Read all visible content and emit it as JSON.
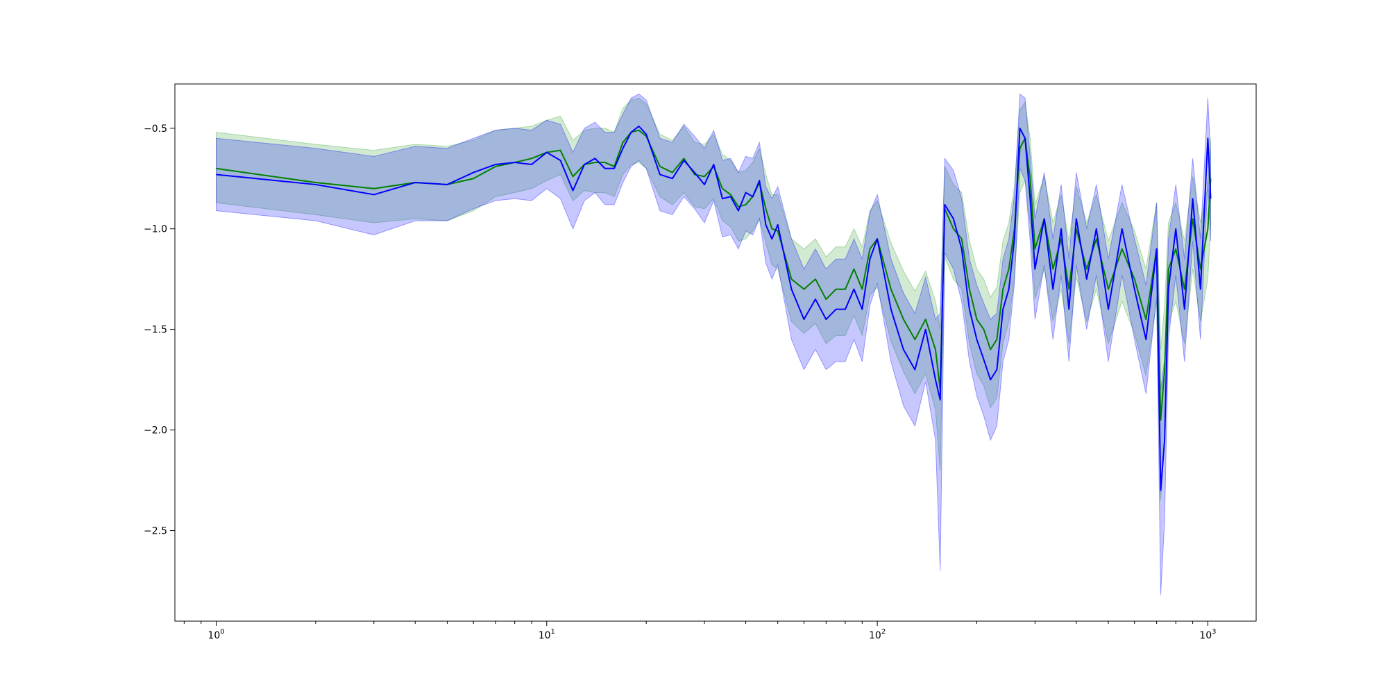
{
  "chart_data": {
    "type": "line",
    "title": "",
    "xlabel": "",
    "ylabel": "",
    "x_scale": "log",
    "xlim": [
      0.75,
      1400
    ],
    "ylim": [
      -2.95,
      -0.28
    ],
    "grid": false,
    "legend": "none",
    "x_ticks": [
      {
        "value": 1,
        "base": "10",
        "exp": "0"
      },
      {
        "value": 10,
        "base": "10",
        "exp": "1"
      },
      {
        "value": 100,
        "base": "10",
        "exp": "2"
      },
      {
        "value": 1000,
        "base": "10",
        "exp": "3"
      }
    ],
    "y_ticks": [
      {
        "value": -0.5,
        "label": "−0.5"
      },
      {
        "value": -1.0,
        "label": "−1.0"
      },
      {
        "value": -1.5,
        "label": "−1.5"
      },
      {
        "value": -2.0,
        "label": "−2.0"
      },
      {
        "value": -2.5,
        "label": "−2.5"
      }
    ],
    "series": [
      {
        "color": "#008000",
        "band_color": "#2ca02c",
        "x": [
          1,
          2,
          3,
          4,
          5,
          6,
          7,
          8,
          9,
          10,
          11,
          12,
          13,
          14,
          15,
          16,
          17,
          18,
          19,
          20,
          22,
          24,
          26,
          28,
          30,
          32,
          34,
          36,
          38,
          40,
          42,
          44,
          46,
          48,
          50,
          55,
          60,
          65,
          70,
          75,
          80,
          85,
          90,
          95,
          100,
          110,
          120,
          130,
          140,
          150,
          155,
          160,
          170,
          180,
          190,
          200,
          210,
          220,
          230,
          240,
          250,
          260,
          270,
          280,
          290,
          300,
          320,
          340,
          360,
          380,
          400,
          430,
          460,
          500,
          550,
          600,
          650,
          700,
          720,
          740,
          760,
          800,
          850,
          900,
          950,
          1000,
          1020
        ],
        "y": [
          -0.7,
          -0.77,
          -0.8,
          -0.77,
          -0.78,
          -0.75,
          -0.69,
          -0.67,
          -0.65,
          -0.62,
          -0.61,
          -0.74,
          -0.68,
          -0.67,
          -0.67,
          -0.69,
          -0.57,
          -0.52,
          -0.51,
          -0.54,
          -0.69,
          -0.72,
          -0.65,
          -0.73,
          -0.74,
          -0.69,
          -0.8,
          -0.83,
          -0.89,
          -0.88,
          -0.84,
          -0.77,
          -0.9,
          -1.0,
          -1.01,
          -1.25,
          -1.3,
          -1.25,
          -1.35,
          -1.3,
          -1.3,
          -1.2,
          -1.3,
          -1.1,
          -1.05,
          -1.3,
          -1.45,
          -1.55,
          -1.45,
          -1.6,
          -1.8,
          -0.9,
          -1.0,
          -1.05,
          -1.3,
          -1.45,
          -1.5,
          -1.6,
          -1.55,
          -1.3,
          -1.2,
          -1.0,
          -0.6,
          -0.55,
          -0.75,
          -1.1,
          -0.95,
          -1.2,
          -1.05,
          -1.3,
          -1.0,
          -1.2,
          -1.05,
          -1.3,
          -1.1,
          -1.25,
          -1.45,
          -1.1,
          -1.95,
          -1.7,
          -1.2,
          -1.1,
          -1.3,
          -0.95,
          -1.2,
          -1.0,
          -0.75
        ],
        "lower": [
          -0.87,
          -0.93,
          -0.97,
          -0.95,
          -0.96,
          -0.91,
          -0.84,
          -0.82,
          -0.8,
          -0.76,
          -0.73,
          -0.86,
          -0.81,
          -0.82,
          -0.82,
          -0.84,
          -0.73,
          -0.68,
          -0.67,
          -0.7,
          -0.84,
          -0.88,
          -0.82,
          -0.89,
          -0.9,
          -0.85,
          -0.96,
          -0.99,
          -1.06,
          -1.05,
          -1.01,
          -0.95,
          -1.07,
          -1.18,
          -1.2,
          -1.46,
          -1.52,
          -1.47,
          -1.57,
          -1.53,
          -1.53,
          -1.43,
          -1.53,
          -1.33,
          -1.29,
          -1.56,
          -1.71,
          -1.82,
          -1.72,
          -1.9,
          -2.2,
          -1.14,
          -1.25,
          -1.3,
          -1.57,
          -1.72,
          -1.78,
          -1.89,
          -1.84,
          -1.57,
          -1.46,
          -1.24,
          -0.82,
          -0.76,
          -0.98,
          -1.35,
          -1.2,
          -1.46,
          -1.3,
          -1.57,
          -1.24,
          -1.46,
          -1.3,
          -1.57,
          -1.36,
          -1.52,
          -1.73,
          -1.36,
          -2.35,
          -2.05,
          -1.47,
          -1.36,
          -1.57,
          -1.2,
          -1.46,
          -1.25,
          -0.98
        ],
        "upper": [
          -0.52,
          -0.58,
          -0.61,
          -0.58,
          -0.59,
          -0.56,
          -0.51,
          -0.5,
          -0.49,
          -0.46,
          -0.44,
          -0.56,
          -0.51,
          -0.5,
          -0.5,
          -0.52,
          -0.4,
          -0.36,
          -0.35,
          -0.38,
          -0.53,
          -0.56,
          -0.49,
          -0.57,
          -0.58,
          -0.53,
          -0.63,
          -0.66,
          -0.72,
          -0.71,
          -0.67,
          -0.6,
          -0.73,
          -0.83,
          -0.83,
          -1.05,
          -1.1,
          -1.05,
          -1.14,
          -1.09,
          -1.09,
          -1.0,
          -1.09,
          -0.91,
          -0.86,
          -1.07,
          -1.21,
          -1.31,
          -1.21,
          -1.36,
          -1.5,
          -0.69,
          -0.78,
          -0.82,
          -1.06,
          -1.2,
          -1.25,
          -1.34,
          -1.29,
          -1.06,
          -0.97,
          -0.79,
          -0.41,
          -0.37,
          -0.55,
          -0.88,
          -0.74,
          -0.97,
          -0.83,
          -1.06,
          -0.79,
          -0.97,
          -0.83,
          -1.06,
          -0.87,
          -1.01,
          -1.2,
          -0.87,
          -1.6,
          -1.38,
          -0.97,
          -0.87,
          -1.06,
          -0.74,
          -0.97,
          -0.79,
          -0.55
        ]
      },
      {
        "color": "#0000ff",
        "band_color": "#0000ff",
        "x": [
          1,
          2,
          3,
          4,
          5,
          6,
          7,
          8,
          9,
          10,
          11,
          12,
          13,
          14,
          15,
          16,
          17,
          18,
          19,
          20,
          22,
          24,
          26,
          28,
          30,
          32,
          34,
          36,
          38,
          40,
          42,
          44,
          46,
          48,
          50,
          55,
          60,
          65,
          70,
          75,
          80,
          85,
          90,
          95,
          100,
          110,
          120,
          130,
          140,
          150,
          155,
          160,
          170,
          180,
          190,
          200,
          210,
          220,
          230,
          240,
          250,
          260,
          270,
          280,
          290,
          300,
          320,
          340,
          360,
          380,
          400,
          430,
          460,
          500,
          550,
          600,
          650,
          700,
          720,
          740,
          760,
          800,
          850,
          900,
          950,
          1000,
          1020
        ],
        "y": [
          -0.73,
          -0.78,
          -0.83,
          -0.77,
          -0.78,
          -0.72,
          -0.68,
          -0.67,
          -0.68,
          -0.62,
          -0.66,
          -0.81,
          -0.68,
          -0.65,
          -0.7,
          -0.7,
          -0.6,
          -0.52,
          -0.49,
          -0.53,
          -0.73,
          -0.75,
          -0.66,
          -0.72,
          -0.78,
          -0.68,
          -0.85,
          -0.84,
          -0.91,
          -0.82,
          -0.84,
          -0.76,
          -0.98,
          -1.05,
          -0.98,
          -1.3,
          -1.45,
          -1.35,
          -1.45,
          -1.4,
          -1.4,
          -1.3,
          -1.4,
          -1.15,
          -1.05,
          -1.4,
          -1.6,
          -1.7,
          -1.5,
          -1.75,
          -1.85,
          -0.88,
          -0.95,
          -1.1,
          -1.4,
          -1.55,
          -1.65,
          -1.75,
          -1.7,
          -1.4,
          -1.3,
          -1.05,
          -0.5,
          -0.55,
          -0.85,
          -1.2,
          -0.95,
          -1.3,
          -1.0,
          -1.4,
          -0.95,
          -1.25,
          -1.0,
          -1.4,
          -1.0,
          -1.3,
          -1.55,
          -1.1,
          -2.3,
          -2.05,
          -1.3,
          -1.0,
          -1.4,
          -0.85,
          -1.3,
          -0.55,
          -0.85
        ],
        "lower": [
          -0.91,
          -0.96,
          -1.03,
          -0.96,
          -0.96,
          -0.9,
          -0.86,
          -0.85,
          -0.86,
          -0.8,
          -0.85,
          -1.0,
          -0.86,
          -0.82,
          -0.88,
          -0.88,
          -0.77,
          -0.69,
          -0.66,
          -0.7,
          -0.91,
          -0.93,
          -0.84,
          -0.9,
          -0.97,
          -0.86,
          -1.04,
          -1.03,
          -1.1,
          -1.01,
          -1.03,
          -0.95,
          -1.17,
          -1.25,
          -1.18,
          -1.55,
          -1.7,
          -1.6,
          -1.7,
          -1.66,
          -1.66,
          -1.55,
          -1.66,
          -1.38,
          -1.27,
          -1.66,
          -1.88,
          -1.98,
          -1.76,
          -2.05,
          -2.7,
          -1.12,
          -1.2,
          -1.36,
          -1.66,
          -1.83,
          -1.93,
          -2.05,
          -1.98,
          -1.66,
          -1.55,
          -1.27,
          -0.7,
          -0.76,
          -1.06,
          -1.45,
          -1.18,
          -1.55,
          -1.23,
          -1.66,
          -1.18,
          -1.5,
          -1.23,
          -1.66,
          -1.23,
          -1.55,
          -1.82,
          -1.34,
          -2.82,
          -2.45,
          -1.55,
          -1.23,
          -1.66,
          -1.06,
          -1.55,
          -0.76,
          -1.06
        ],
        "upper": [
          -0.55,
          -0.6,
          -0.64,
          -0.59,
          -0.6,
          -0.55,
          -0.51,
          -0.5,
          -0.51,
          -0.46,
          -0.48,
          -0.62,
          -0.5,
          -0.47,
          -0.52,
          -0.52,
          -0.43,
          -0.35,
          -0.33,
          -0.36,
          -0.55,
          -0.57,
          -0.48,
          -0.54,
          -0.6,
          -0.51,
          -0.66,
          -0.65,
          -0.72,
          -0.64,
          -0.65,
          -0.57,
          -0.79,
          -0.85,
          -0.79,
          -1.05,
          -1.2,
          -1.1,
          -1.2,
          -1.15,
          -1.15,
          -1.05,
          -1.15,
          -0.92,
          -0.83,
          -1.15,
          -1.32,
          -1.42,
          -1.24,
          -1.45,
          -1.42,
          -0.65,
          -0.71,
          -0.85,
          -1.15,
          -1.28,
          -1.37,
          -1.45,
          -1.42,
          -1.15,
          -1.05,
          -0.83,
          -0.33,
          -0.35,
          -0.64,
          -0.95,
          -0.72,
          -1.05,
          -0.78,
          -1.15,
          -0.72,
          -1.0,
          -0.78,
          -1.15,
          -0.78,
          -1.05,
          -1.28,
          -0.87,
          -1.8,
          -1.65,
          -1.05,
          -0.78,
          -1.15,
          -0.65,
          -1.05,
          -0.35,
          -0.64
        ]
      }
    ]
  }
}
